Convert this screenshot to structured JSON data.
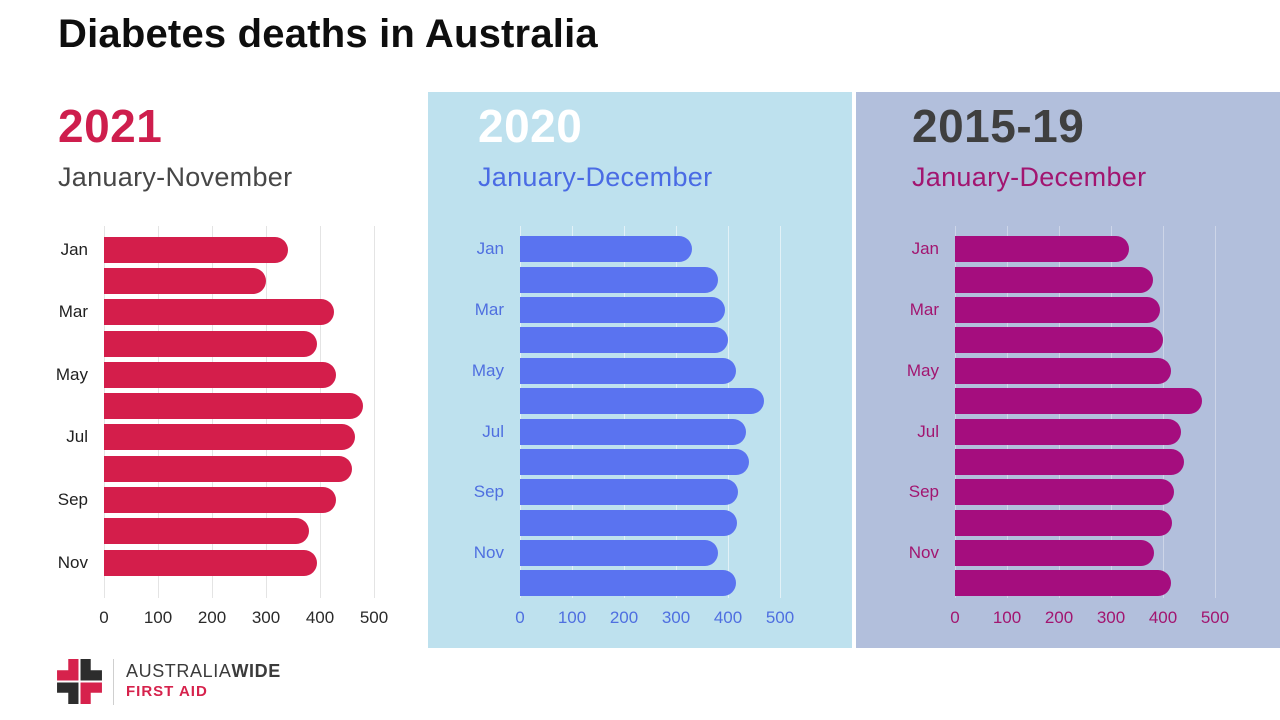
{
  "title": "Diabetes deaths in Australia",
  "logo": {
    "brand_main": "AUSTRALIA",
    "brand_bold": "WIDE",
    "brand_sub": "FIRST AID",
    "cross_red": "#d6224c",
    "cross_dark": "#2d2d2d"
  },
  "chart_data": [
    {
      "type": "bar",
      "orientation": "horizontal",
      "title": "2021",
      "subtitle": "January-November",
      "categories": [
        "Jan",
        "Feb",
        "Mar",
        "Apr",
        "May",
        "Jun",
        "Jul",
        "Aug",
        "Sep",
        "Oct",
        "Nov"
      ],
      "values": [
        340,
        300,
        425,
        395,
        430,
        480,
        465,
        460,
        430,
        380,
        395
      ],
      "labeled_categories": [
        "Jan",
        "Mar",
        "May",
        "Jul",
        "Sep",
        "Nov"
      ],
      "xlim": [
        0,
        500
      ],
      "xticks": [
        0,
        100,
        200,
        300,
        400,
        500
      ],
      "grid": true,
      "bar_color": "#d41e4b",
      "label_color": "#1f1f1f",
      "tick_color": "#2a2a2a",
      "title_color": "#ce1e4d",
      "subtitle_color": "#474747",
      "panel_bg": "transparent",
      "grid_color": "#e4e4e4"
    },
    {
      "type": "bar",
      "orientation": "horizontal",
      "title": "2020",
      "subtitle": "January-December",
      "categories": [
        "Jan",
        "Feb",
        "Mar",
        "Apr",
        "May",
        "Jun",
        "Jul",
        "Aug",
        "Sep",
        "Oct",
        "Nov",
        "Dec"
      ],
      "values": [
        330,
        380,
        395,
        400,
        415,
        470,
        435,
        440,
        420,
        418,
        380,
        415
      ],
      "labeled_categories": [
        "Jan",
        "Mar",
        "May",
        "Jul",
        "Sep",
        "Nov"
      ],
      "xlim": [
        0,
        500
      ],
      "xticks": [
        0,
        100,
        200,
        300,
        400,
        500
      ],
      "grid": true,
      "bar_color": "#5a73f0",
      "label_color": "#4f6fe0",
      "tick_color": "#4f6fe0",
      "title_color": "#ffffff",
      "subtitle_color": "#4a6be4",
      "panel_bg": "#bee1ee",
      "grid_color": "rgba(255,255,255,0.55)"
    },
    {
      "type": "bar",
      "orientation": "horizontal",
      "title": "2015-19",
      "subtitle": "January-December",
      "categories": [
        "Jan",
        "Feb",
        "Mar",
        "Apr",
        "May",
        "Jun",
        "Jul",
        "Aug",
        "Sep",
        "Oct",
        "Nov",
        "Dec"
      ],
      "values": [
        335,
        380,
        395,
        400,
        415,
        475,
        435,
        440,
        422,
        418,
        383,
        415
      ],
      "labeled_categories": [
        "Jan",
        "Mar",
        "May",
        "Jul",
        "Sep",
        "Nov"
      ],
      "xlim": [
        0,
        500
      ],
      "xticks": [
        0,
        100,
        200,
        300,
        400,
        500
      ],
      "grid": true,
      "bar_color": "#a50d7e",
      "label_color": "#a21570",
      "tick_color": "#a21570",
      "title_color": "#3f3f3f",
      "subtitle_color": "#a21570",
      "panel_bg": "#b2bfdc",
      "grid_color": "rgba(255,255,255,0.35)"
    }
  ]
}
